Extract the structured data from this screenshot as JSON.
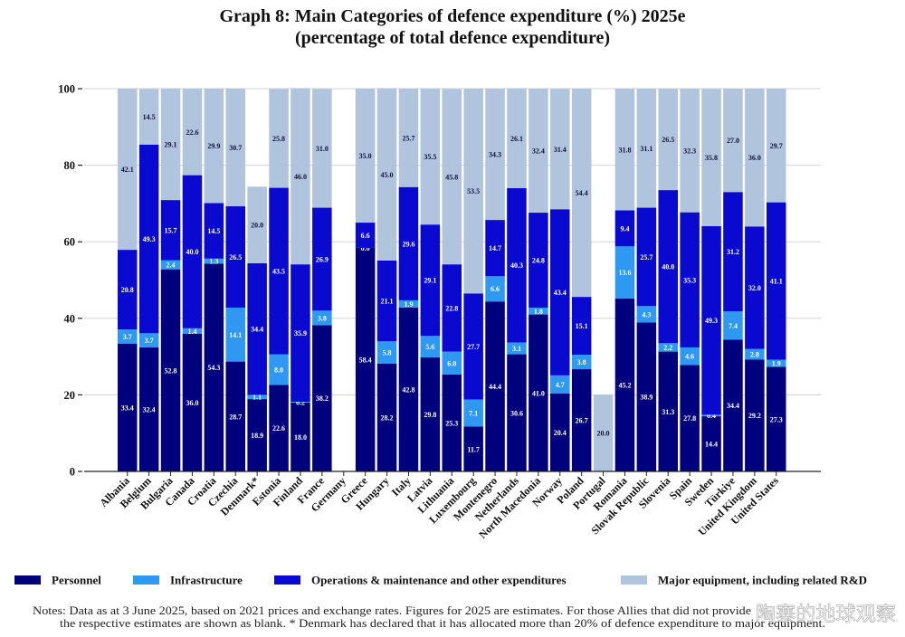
{
  "chart_data": {
    "type": "bar",
    "stacked": true,
    "title": "Graph 8: Main Categories of defence expenditure (%) 2025e",
    "subtitle": "(percentage of total defence expenditure)",
    "xlabel": "",
    "ylabel": "",
    "ylim": [
      0,
      100
    ],
    "yticks": [
      0,
      20,
      40,
      60,
      80,
      100
    ],
    "grid": true,
    "legend_position": "bottom",
    "categories": [
      "Albania",
      "Belgium",
      "Bulgaria",
      "Canada",
      "Croatia",
      "Czechia",
      "Denmark*",
      "Estonia",
      "Finland",
      "France",
      "Germany",
      "Greece",
      "Hungary",
      "Italy",
      "Latvia",
      "Lithuania",
      "Luxembourg",
      "Montenegro",
      "Netherlands",
      "North Macedonia",
      "Norway",
      "Poland",
      "Portugal",
      "Romania",
      "Slovak Republic",
      "Slovenia",
      "Spain",
      "Sweden",
      "Türkiye",
      "United Kingdom",
      "United States"
    ],
    "series": [
      {
        "name": "Personnel",
        "color": "#00007f",
        "label_color": "#ffffff",
        "values": [
          33.4,
          32.4,
          52.8,
          36.0,
          54.3,
          28.7,
          18.9,
          22.6,
          18.0,
          38.2,
          null,
          58.4,
          28.2,
          42.8,
          29.8,
          25.3,
          11.7,
          44.4,
          30.6,
          41.0,
          20.4,
          26.7,
          null,
          45.2,
          38.9,
          31.3,
          27.8,
          14.4,
          34.4,
          29.2,
          27.3
        ]
      },
      {
        "name": "Infrastructure",
        "color": "#2f98f2",
        "label_color": "#ffffff",
        "values": [
          3.7,
          3.7,
          2.4,
          1.4,
          1.3,
          14.1,
          1.1,
          8.0,
          0.2,
          3.8,
          null,
          0.0,
          5.8,
          1.9,
          5.6,
          6.0,
          7.1,
          6.6,
          3.1,
          1.8,
          4.7,
          3.8,
          null,
          13.6,
          4.3,
          2.2,
          4.6,
          0.4,
          7.4,
          2.8,
          1.9
        ]
      },
      {
        "name": "Operations & maintenance and other expenditures",
        "color": "#0909cf",
        "label_color": "#ffffff",
        "values": [
          20.8,
          49.3,
          15.7,
          40.0,
          14.5,
          26.5,
          34.4,
          43.5,
          35.9,
          26.9,
          null,
          6.6,
          21.1,
          29.6,
          29.1,
          22.8,
          27.7,
          14.7,
          40.3,
          24.8,
          43.4,
          15.1,
          null,
          9.4,
          25.7,
          40.0,
          35.3,
          49.3,
          31.2,
          32.0,
          41.1
        ]
      },
      {
        "name": "Major equipment, including related R&D",
        "color": "#b0c4de",
        "label_color": "#10103a",
        "values": [
          42.1,
          14.5,
          29.1,
          22.6,
          29.9,
          30.7,
          20.0,
          25.8,
          46.0,
          31.0,
          null,
          35.0,
          45.0,
          25.7,
          35.5,
          45.8,
          53.5,
          34.3,
          26.1,
          32.4,
          31.4,
          54.4,
          20.0,
          31.8,
          31.1,
          26.5,
          32.3,
          35.8,
          27.0,
          36.0,
          29.7
        ]
      }
    ]
  },
  "notes": {
    "line1": "Notes: Data as at 3 June 2025, based on 2021 prices and exchange rates. Figures for 2025 are estimates. For those Allies that did not provide",
    "line2": "the respective estimates are shown as blank. * Denmark has declared that it has allocated more than 20% of defence expenditure to major equipment."
  },
  "watermark": "陶寨的地球观察"
}
